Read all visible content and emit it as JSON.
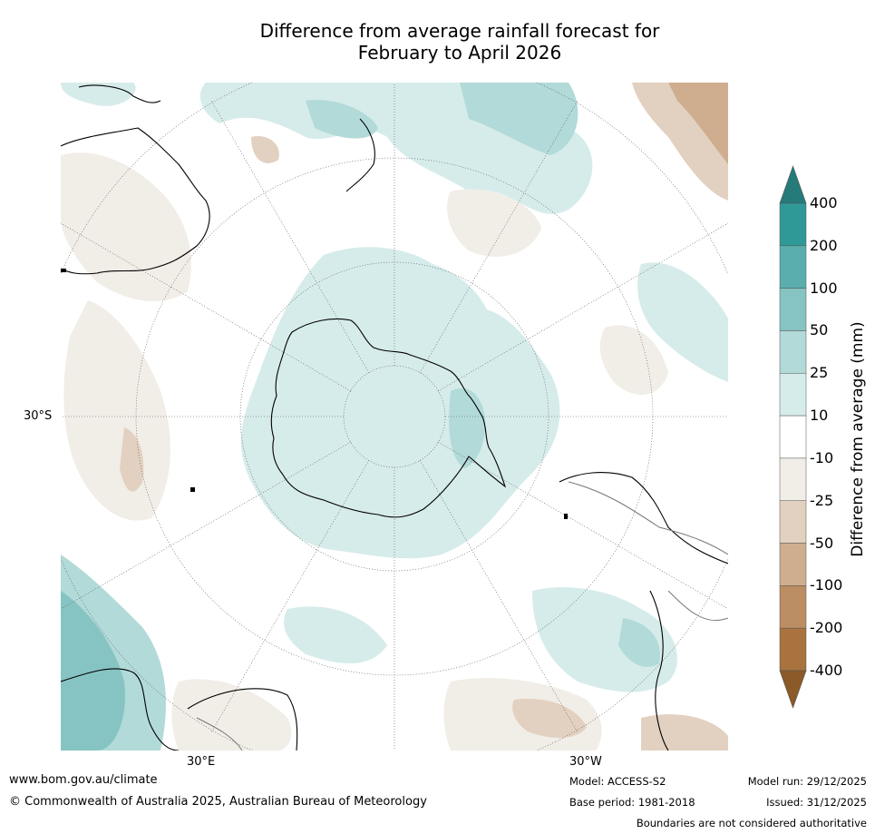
{
  "title_line1": "Difference from average rainfall forecast for",
  "title_line2": "February to April 2026",
  "lat_labels": {
    "left": "30°S",
    "bottom_left": "30°E",
    "bottom_right": "30°W"
  },
  "colorbar": {
    "title": "Difference from average (mm)",
    "tick_labels": [
      "400",
      "200",
      "100",
      "50",
      "25",
      "10",
      "-10",
      "-25",
      "-50",
      "-100",
      "-200",
      "-400"
    ],
    "colors": {
      "extend_top": "#257a7a",
      "bins_top_to_bottom": [
        "#2f9998",
        "#5aaeae",
        "#86c4c3",
        "#b2dad9",
        "#d6ecea",
        "#ffffff",
        "#f1ede7",
        "#e2d1c0",
        "#cfae90",
        "#bb8d62",
        "#a8733f"
      ],
      "extend_bottom": "#8b5a28"
    }
  },
  "footer": {
    "url": "www.bom.gov.au/climate",
    "copyright": "© Commonwealth of Australia 2025, Australian Bureau of Meteorology",
    "model": "Model: ACCESS-S2",
    "base_period": "Base period: 1981-2018",
    "model_run": "Model run: 29/12/2025",
    "issued": "Issued: 31/12/2025",
    "disclaimer": "Boundaries are not considered authoritative"
  }
}
